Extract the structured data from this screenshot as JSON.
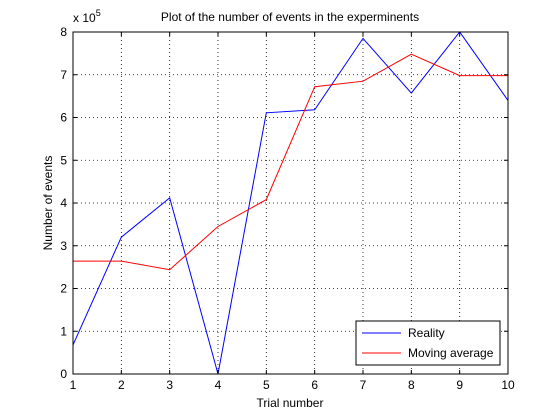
{
  "chart_data": {
    "type": "line",
    "title": "Plot of the number of events in the experminents",
    "xlabel": "Trial number",
    "ylabel": "Number of events",
    "y_exponent_base": "x 10",
    "y_exponent_power": "5",
    "x": [
      1,
      2,
      3,
      4,
      5,
      6,
      7,
      8,
      9,
      10
    ],
    "xlim": [
      1,
      10
    ],
    "ylim": [
      0,
      800000
    ],
    "xticks": [
      "1",
      "2",
      "3",
      "4",
      "5",
      "6",
      "7",
      "8",
      "9",
      "10"
    ],
    "yticks": [
      "0",
      "1",
      "2",
      "3",
      "4",
      "5",
      "6",
      "7",
      "8"
    ],
    "grid": true,
    "legend_position": "bottom-right",
    "series": [
      {
        "name": "Reality",
        "color": "#0000ff",
        "values": [
          68000,
          320000,
          412000,
          0,
          611000,
          618000,
          785000,
          657000,
          800000,
          640000
        ]
      },
      {
        "name": "Moving average",
        "color": "#ff0000",
        "values": [
          264000,
          264000,
          244000,
          345000,
          408000,
          672000,
          685000,
          748000,
          698000,
          698000
        ]
      }
    ]
  }
}
